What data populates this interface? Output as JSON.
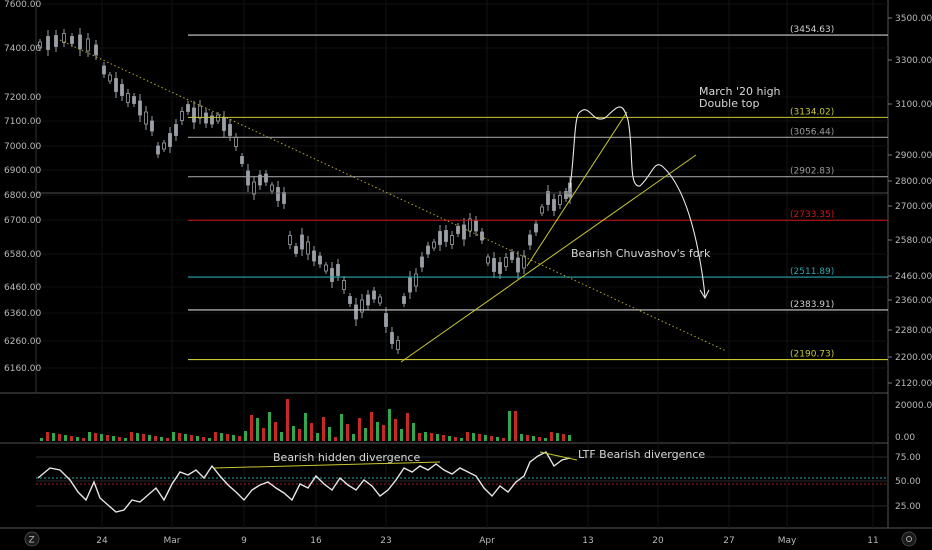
{
  "chart_data": {
    "type": "candlestick",
    "x_ticks": [
      "24",
      "Mar",
      "9",
      "16",
      "23",
      "Apr",
      "13",
      "20",
      "27",
      "May",
      "11"
    ],
    "left_axis": {
      "ylim": [
        6100,
        7650
      ],
      "ticks": [
        "7600.00",
        "7400.00",
        "7200.00",
        "7100.00",
        "7000.00",
        "6900.00",
        "6800.00",
        "6700.00",
        "6580.00",
        "6460.00",
        "6360.00",
        "6260.00",
        "6160.00"
      ]
    },
    "right_axis": {
      "ylim": [
        2080,
        3560
      ],
      "ticks": [
        "3500.00",
        "3300.00",
        "3100.00",
        "2900.00",
        "2800.00",
        "2700.00",
        "2580.00",
        "2460.00",
        "2360.00",
        "2280.00",
        "2200.00",
        "2120.00"
      ]
    },
    "price_lines": [
      {
        "label": "(3454.63)",
        "value": 3454.63,
        "color": "#cfcfcf"
      },
      {
        "label": "(3134.02)",
        "value": 3134.02,
        "color": "#c8c832"
      },
      {
        "label": "(3056.44)",
        "value": 3056.44,
        "color": "#9a9a9a"
      },
      {
        "label": "(2902.83)",
        "value": 2902.83,
        "color": "#9a9a9a"
      },
      {
        "label": "(2733.35)",
        "value": 2733.35,
        "color": "#d01818"
      },
      {
        "label": "(2511.89)",
        "value": 2511.89,
        "color": "#2aa6b0"
      },
      {
        "label": "(2383.91)",
        "value": 2383.91,
        "color": "#cfcfcf"
      },
      {
        "label": "(2190.73)",
        "value": 2190.73,
        "color": "#c8c832"
      }
    ],
    "annotations": [
      {
        "text": "March '20 high"
      },
      {
        "text": "Double top"
      },
      {
        "text": "Bearish Chuvashov's fork"
      },
      {
        "text": "Bearish hidden divergence"
      },
      {
        "text": "LTF Bearish divergence"
      }
    ],
    "volume_axis": {
      "ticks": [
        "20000.00",
        "0.00"
      ]
    },
    "rsi_axis": {
      "ticks": [
        "75.00",
        "50.00",
        "25.00"
      ]
    }
  },
  "corner": {
    "left_icon": "Z",
    "right_icon": "gear-icon"
  },
  "colors": {
    "up": "#2fa84f",
    "down": "#c62828",
    "candle": "#9aa0a6",
    "grid": "#1c1c1c"
  }
}
